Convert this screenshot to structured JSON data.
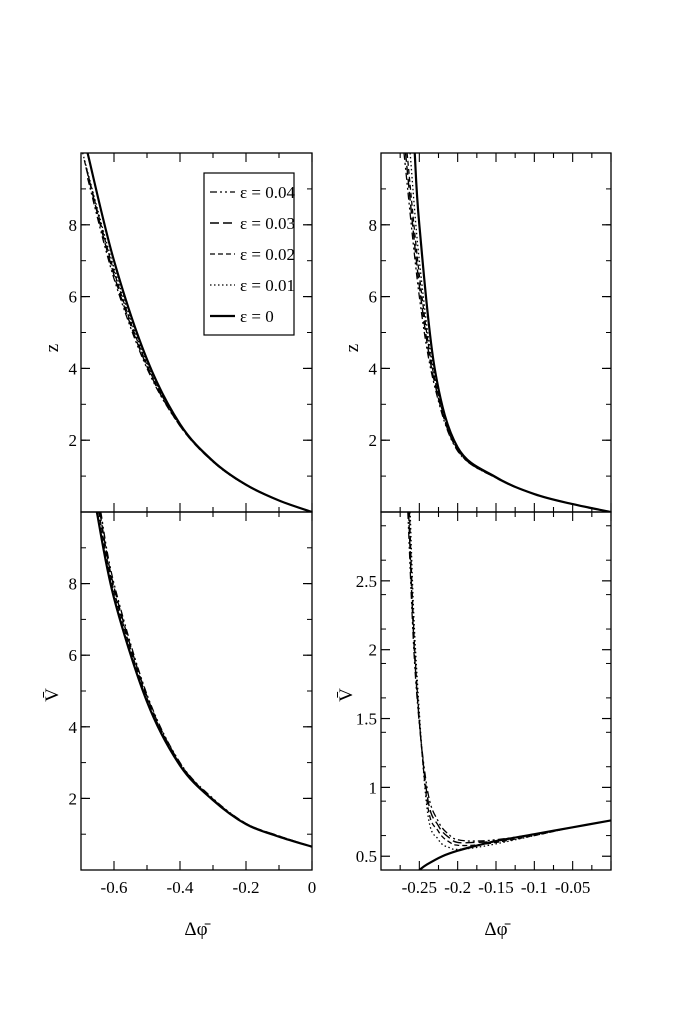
{
  "legend": {
    "placement": "top-right of top-left panel",
    "entries": [
      {
        "label": "ε = 0.04",
        "dash": "dash-dot-dot"
      },
      {
        "label": "ε = 0.03",
        "dash": "long-dash"
      },
      {
        "label": "ε = 0.02",
        "dash": "short-dash"
      },
      {
        "label": "ε = 0.01",
        "dash": "dotted"
      },
      {
        "label": "ε = 0",
        "dash": "solid-thick"
      }
    ]
  },
  "xlabel_left": "Δφ̄",
  "xlabel_right": "Δφ̄",
  "chart_data": [
    {
      "panel": "top-left",
      "type": "line",
      "ylabel": "z",
      "xlim": [
        -0.7,
        0
      ],
      "ylim": [
        0,
        10
      ],
      "xticks": [],
      "yticks": [
        "2",
        "4",
        "6",
        "8"
      ],
      "grid": false,
      "series": [
        {
          "name": "ε = 0.04",
          "x": [
            -0.68,
            -0.6,
            -0.5,
            -0.4,
            -0.3,
            -0.2,
            -0.1,
            0
          ],
          "y": [
            9.3,
            6.5,
            4.0,
            2.4,
            1.4,
            0.75,
            0.32,
            0
          ]
        },
        {
          "name": "ε = 0.03",
          "x": [
            -0.685,
            -0.6,
            -0.5,
            -0.4,
            -0.3,
            -0.2,
            -0.1,
            0
          ],
          "y": [
            9.6,
            6.6,
            4.05,
            2.4,
            1.4,
            0.75,
            0.32,
            0
          ]
        },
        {
          "name": "ε = 0.02",
          "x": [
            -0.69,
            -0.6,
            -0.5,
            -0.4,
            -0.3,
            -0.2,
            -0.1,
            0
          ],
          "y": [
            9.8,
            6.7,
            4.1,
            2.42,
            1.4,
            0.75,
            0.32,
            0
          ]
        },
        {
          "name": "ε = 0.01",
          "x": [
            -0.695,
            -0.6,
            -0.5,
            -0.4,
            -0.3,
            -0.2,
            -0.1,
            0
          ],
          "y": [
            10.0,
            6.8,
            4.15,
            2.43,
            1.4,
            0.75,
            0.32,
            0
          ]
        },
        {
          "name": "ε = 0",
          "x": [
            -0.68,
            -0.6,
            -0.5,
            -0.4,
            -0.3,
            -0.2,
            -0.1,
            0
          ],
          "y": [
            10.0,
            7.0,
            4.25,
            2.45,
            1.42,
            0.76,
            0.32,
            0
          ]
        }
      ]
    },
    {
      "panel": "top-right",
      "type": "line",
      "ylabel": "z",
      "xlim": [
        -0.3,
        0
      ],
      "ylim": [
        0,
        10
      ],
      "xticks": [],
      "yticks": [
        "2",
        "4",
        "6",
        "8"
      ],
      "grid": false,
      "series": [
        {
          "name": "ε = 0.04",
          "x": [
            -0.27,
            -0.25,
            -0.23,
            -0.2,
            -0.15,
            -0.1,
            -0.05,
            0
          ],
          "y": [
            10.0,
            6.0,
            3.5,
            1.7,
            0.95,
            0.5,
            0.22,
            0
          ]
        },
        {
          "name": "ε = 0.03",
          "x": [
            -0.268,
            -0.25,
            -0.23,
            -0.2,
            -0.15,
            -0.1,
            -0.05,
            0
          ],
          "y": [
            10.0,
            6.3,
            3.6,
            1.72,
            0.95,
            0.5,
            0.22,
            0
          ]
        },
        {
          "name": "ε = 0.02",
          "x": [
            -0.266,
            -0.25,
            -0.23,
            -0.2,
            -0.15,
            -0.1,
            -0.05,
            0
          ],
          "y": [
            10.0,
            6.6,
            3.7,
            1.74,
            0.95,
            0.5,
            0.22,
            0
          ]
        },
        {
          "name": "ε = 0.01",
          "x": [
            -0.262,
            -0.25,
            -0.23,
            -0.2,
            -0.15,
            -0.1,
            -0.05,
            0
          ],
          "y": [
            10.0,
            7.0,
            3.8,
            1.76,
            0.96,
            0.5,
            0.22,
            0
          ]
        },
        {
          "name": "ε = 0",
          "x": [
            -0.256,
            -0.25,
            -0.23,
            -0.2,
            -0.15,
            -0.1,
            -0.05,
            0
          ],
          "y": [
            10.0,
            8.0,
            4.0,
            1.8,
            0.97,
            0.5,
            0.22,
            0
          ]
        }
      ]
    },
    {
      "panel": "bottom-left",
      "type": "line",
      "ylabel": "V̄",
      "xlim": [
        -0.7,
        0
      ],
      "ylim": [
        0,
        10
      ],
      "xticks": [
        "-0.6",
        "-0.4",
        "-0.2",
        "0"
      ],
      "yticks": [
        "2",
        "4",
        "6",
        "8"
      ],
      "grid": false,
      "series": [
        {
          "name": "ε = 0.04",
          "x": [
            -0.64,
            -0.6,
            -0.5,
            -0.4,
            -0.3,
            -0.2,
            -0.1,
            0
          ],
          "y": [
            10.0,
            8.0,
            4.9,
            3.0,
            2.0,
            1.3,
            0.95,
            0.65
          ]
        },
        {
          "name": "ε = 0.03",
          "x": [
            -0.643,
            -0.6,
            -0.5,
            -0.4,
            -0.3,
            -0.2,
            -0.1,
            0
          ],
          "y": [
            10.0,
            7.9,
            4.85,
            2.98,
            1.98,
            1.3,
            0.95,
            0.65
          ]
        },
        {
          "name": "ε = 0.02",
          "x": [
            -0.646,
            -0.6,
            -0.5,
            -0.4,
            -0.3,
            -0.2,
            -0.1,
            0
          ],
          "y": [
            10.0,
            7.8,
            4.8,
            2.96,
            1.97,
            1.29,
            0.94,
            0.65
          ]
        },
        {
          "name": "ε = 0.01",
          "x": [
            -0.649,
            -0.6,
            -0.5,
            -0.4,
            -0.3,
            -0.2,
            -0.1,
            0
          ],
          "y": [
            10.0,
            7.7,
            4.75,
            2.94,
            1.96,
            1.29,
            0.94,
            0.65
          ]
        },
        {
          "name": "ε = 0",
          "x": [
            -0.652,
            -0.6,
            -0.5,
            -0.4,
            -0.3,
            -0.2,
            -0.1,
            0
          ],
          "y": [
            10.0,
            7.6,
            4.7,
            2.92,
            1.95,
            1.28,
            0.93,
            0.65
          ]
        }
      ]
    },
    {
      "panel": "bottom-right",
      "type": "line",
      "ylabel": "V̄",
      "xlim": [
        -0.3,
        0
      ],
      "ylim": [
        0.4,
        3.0
      ],
      "xticks": [
        "-0.25",
        "-0.2",
        "-0.15",
        "-0.1",
        "-0.05"
      ],
      "yticks": [
        "0.5",
        "1",
        "1.5",
        "2",
        "2.5"
      ],
      "grid": false,
      "series": [
        {
          "name": "ε = 0.04",
          "x": [
            -0.265,
            -0.255,
            -0.24,
            -0.225,
            -0.21,
            -0.2,
            -0.18,
            -0.15,
            -0.1,
            -0.05,
            0
          ],
          "y": [
            3.0,
            1.8,
            1.0,
            0.75,
            0.65,
            0.62,
            0.61,
            0.62,
            0.66,
            0.71,
            0.76
          ]
        },
        {
          "name": "ε = 0.03",
          "x": [
            -0.264,
            -0.255,
            -0.24,
            -0.225,
            -0.21,
            -0.2,
            -0.18,
            -0.15,
            -0.1,
            -0.05,
            0
          ],
          "y": [
            3.0,
            1.85,
            0.95,
            0.72,
            0.63,
            0.6,
            0.6,
            0.61,
            0.66,
            0.71,
            0.76
          ]
        },
        {
          "name": "ε = 0.02",
          "x": [
            -0.263,
            -0.255,
            -0.24,
            -0.225,
            -0.21,
            -0.2,
            -0.18,
            -0.15,
            -0.1,
            -0.05,
            0
          ],
          "y": [
            3.0,
            1.9,
            0.9,
            0.68,
            0.6,
            0.58,
            0.58,
            0.6,
            0.65,
            0.71,
            0.76
          ]
        },
        {
          "name": "ε = 0.01",
          "x": [
            -0.262,
            -0.255,
            -0.24,
            -0.225,
            -0.21,
            -0.2,
            -0.18,
            -0.15,
            -0.1,
            -0.05,
            0
          ],
          "y": [
            3.0,
            2.0,
            0.85,
            0.62,
            0.56,
            0.55,
            0.56,
            0.59,
            0.65,
            0.71,
            0.76
          ]
        },
        {
          "name": "ε = 0",
          "x": [
            -0.25,
            -0.24,
            -0.22,
            -0.2,
            -0.18,
            -0.15,
            -0.1,
            -0.05,
            0
          ],
          "y": [
            0.4,
            0.44,
            0.5,
            0.54,
            0.57,
            0.61,
            0.66,
            0.71,
            0.76
          ]
        }
      ]
    }
  ]
}
